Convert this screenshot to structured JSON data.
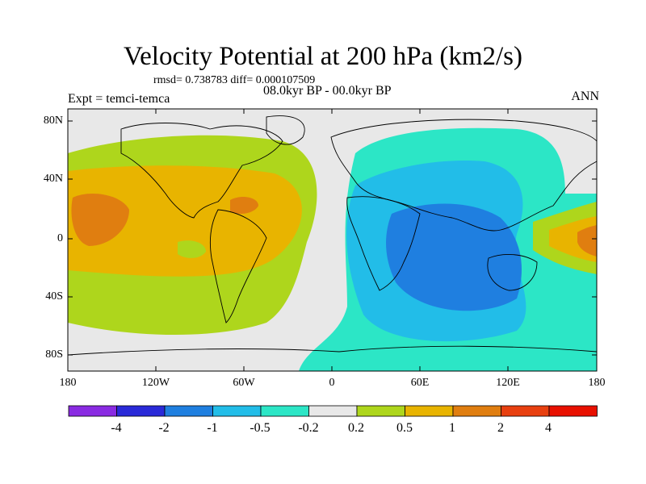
{
  "title": "Velocity Potential at 200 hPa (km2/s)",
  "subtitle": "rmsd= 0.738783 diff= 0.000107509",
  "center_label": "08.0kyr BP - 00.0kyr BP",
  "left_label": "Expt = temci-temca",
  "right_label": "ANN",
  "lat_labels": [
    "80N",
    "40N",
    "0",
    "40S",
    "80S"
  ],
  "lon_labels": [
    "180",
    "120W",
    "60W",
    "0",
    "60E",
    "120E",
    "180"
  ],
  "colorbar": {
    "labels": [
      "-4",
      "-2",
      "-1",
      "-0.5",
      "-0.2",
      "0.2",
      "0.5",
      "1",
      "2",
      "4"
    ],
    "colors": [
      "#8a2be2",
      "#2a2ad8",
      "#1f7fe0",
      "#22bde8",
      "#2ce6c6",
      "#e8e8e8",
      "#aed61c",
      "#e8b400",
      "#e07e10",
      "#e84010",
      "#e81000"
    ]
  },
  "map_colors": {
    "land_outline": "#000000",
    "background": "#e8e8e8"
  }
}
